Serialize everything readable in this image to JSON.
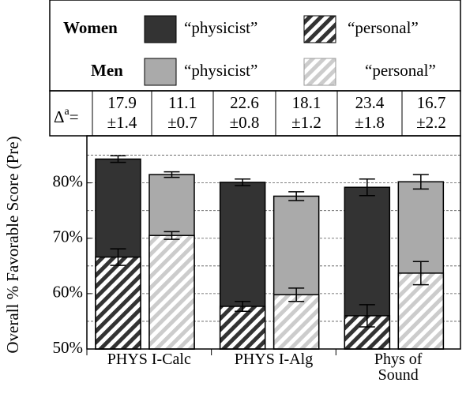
{
  "chart_data": {
    "type": "bar",
    "y_axis_label": "Overall % Favorable Score (Pre)",
    "categories": [
      "PHYS I-Calc",
      "PHYS I-Alg",
      "Phys of Sound"
    ],
    "legend_rows": [
      "Women",
      "Men"
    ],
    "legend_kinds": [
      "“personal”",
      "“physicist”"
    ],
    "series": [
      {
        "group": 0,
        "kind": 1,
        "color": "#333333",
        "values": [
          84.3,
          80.1,
          79.2
        ],
        "errors": [
          0.6,
          0.6,
          1.5
        ]
      },
      {
        "group": 1,
        "kind": 1,
        "color": "#aaaaaa",
        "values": [
          81.5,
          77.6,
          80.2
        ],
        "errors": [
          0.5,
          0.8,
          1.3
        ]
      },
      {
        "group": 0,
        "kind": 0,
        "color": "#333333",
        "values": [
          66.6,
          57.7,
          56.0
        ],
        "errors": [
          1.5,
          0.9,
          2.0
        ]
      },
      {
        "group": 1,
        "kind": 0,
        "color": "#bbbbbb",
        "values": [
          70.5,
          59.8,
          63.7
        ],
        "errors": [
          0.7,
          1.2,
          2.1
        ]
      }
    ],
    "delta": {
      "symbol": "Δ",
      "sup": "a",
      "eq": "=",
      "values": [
        17.9,
        11.1,
        22.6,
        18.1,
        23.4,
        16.7
      ],
      "errors": [
        1.4,
        0.7,
        0.8,
        1.2,
        1.8,
        2.2
      ],
      "error_labels": [
        "±1.4",
        "±0.7",
        "±0.8",
        "±1.2",
        "±1.8",
        "±2.2"
      ]
    },
    "ylim": [
      50,
      88.5
    ],
    "yticks": [
      {
        "value": 50,
        "label": "50%"
      },
      {
        "value": 60,
        "label": "60%"
      },
      {
        "value": 70,
        "label": "70%"
      },
      {
        "value": 80,
        "label": "80%"
      }
    ],
    "ygrid": [
      55,
      60,
      65,
      70,
      75,
      80,
      85
    ],
    "grid": true
  }
}
